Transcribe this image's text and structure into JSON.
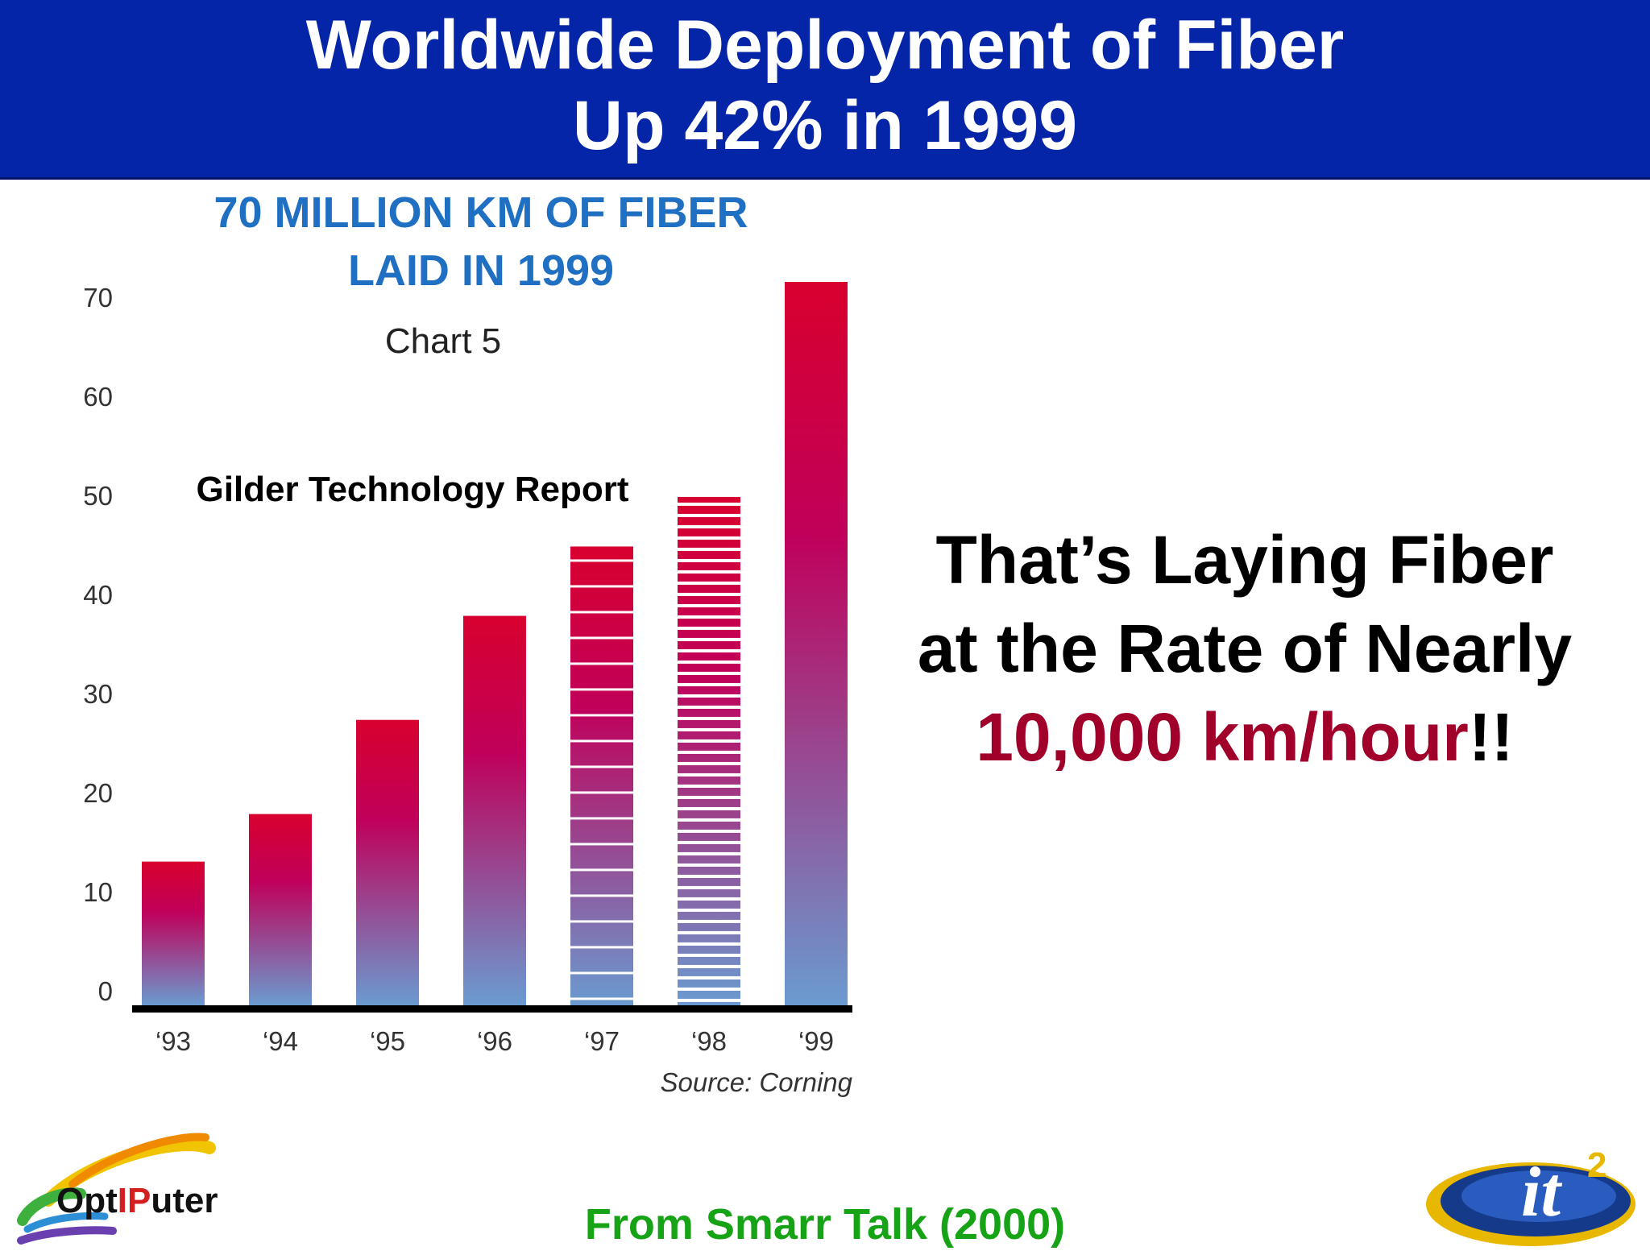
{
  "slide": {
    "title_line1": "Worldwide Deployment of Fiber",
    "title_line2": "Up 42% in 1999",
    "callout_line1": "That’s Laying Fiber",
    "callout_line2": "at the Rate of Nearly",
    "callout_rate": "10,000 km/hour",
    "callout_rate_suffix": "!!",
    "footer": "From Smarr Talk (2000)",
    "logo_left_prefix": "Opt",
    "logo_left_ip": "IP",
    "logo_left_suffix": "uter",
    "logo_left_icon": "optiputer-swoosh-logo",
    "logo_right_icon": "it2-logo"
  },
  "colors": {
    "banner": "#0525a8",
    "bar_top": "#d8002e",
    "bar_mid": "#c0005a",
    "bar_bottom": "#6a9bd0",
    "chart_title": "#1f6fc2",
    "callout_rate": "#a0002a",
    "footer": "#16a316"
  },
  "chart_data": {
    "type": "bar",
    "title": "70 MILLION KM OF FIBER",
    "title_line2": "LAID IN 1999",
    "subtitle": "Chart 5",
    "annotation": "Gilder Technology Report",
    "source": "Source: Corning",
    "categories": [
      "‘93",
      "‘94",
      "‘95",
      "‘96",
      "‘97",
      "‘98",
      "‘99"
    ],
    "values": [
      14.5,
      19.3,
      28.8,
      39.3,
      46.3,
      51.3,
      73.0
    ],
    "striped": [
      false,
      false,
      false,
      false,
      true,
      true,
      false
    ],
    "yticks": [
      0,
      10,
      20,
      30,
      40,
      50,
      60,
      70
    ],
    "ylim": [
      0,
      73
    ],
    "grid": false,
    "xlabel": "",
    "ylabel": ""
  }
}
